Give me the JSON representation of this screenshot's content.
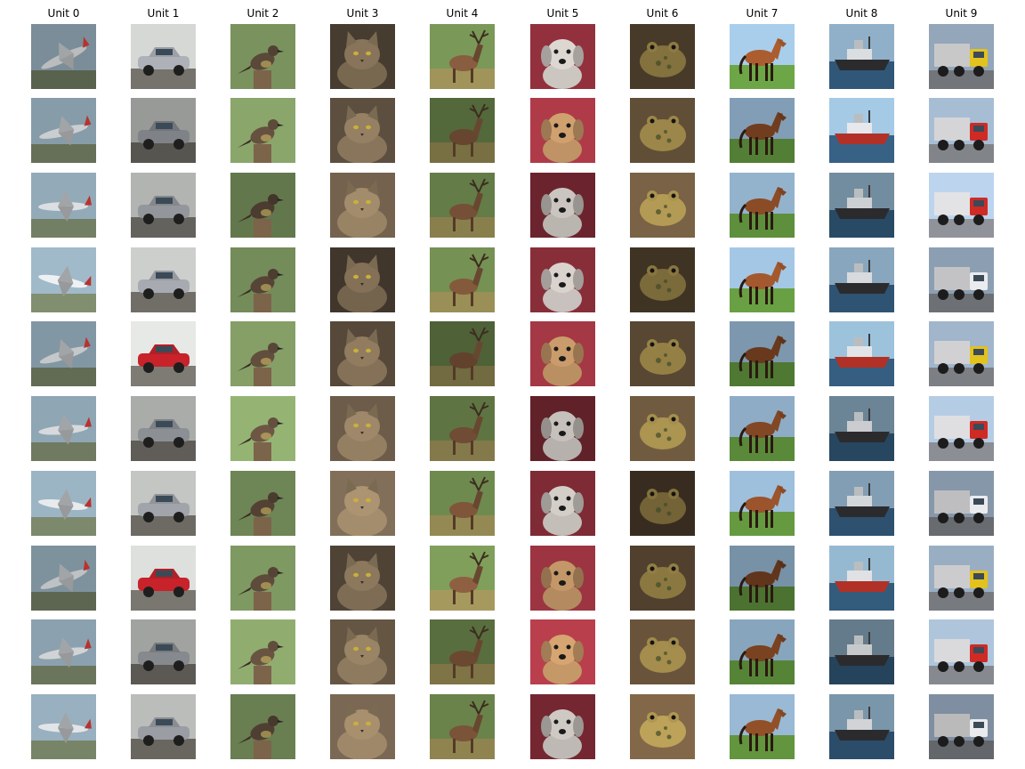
{
  "figure": {
    "columns": [
      {
        "title": "Unit 0",
        "subject": "airplane",
        "palette": {
          "bg": "#8fa6b4",
          "ground": "#6f7a60",
          "fg": "#e8ebee",
          "accent": "#b8322e"
        }
      },
      {
        "title": "Unit 1",
        "subject": "car",
        "palette": {
          "bg": "#d9dcd8",
          "ground": "#6d6a64",
          "fg": "#a9adb3",
          "accent": "#c8222a"
        }
      },
      {
        "title": "Unit 2",
        "subject": "bird",
        "palette": {
          "bg": "#7c9560",
          "ground": "#8a6f52",
          "fg": "#5e4b3b",
          "accent": "#d9c56a"
        }
      },
      {
        "title": "Unit 3",
        "subject": "cat",
        "palette": {
          "bg": "#6a5a48",
          "ground": "#d9cfbf",
          "fg": "#9a8466",
          "accent": "#3b3128"
        }
      },
      {
        "title": "Unit 4",
        "subject": "deer",
        "palette": {
          "bg": "#6f8a4f",
          "ground": "#8f8450",
          "fg": "#7a5338",
          "accent": "#3d2d20"
        }
      },
      {
        "title": "Unit 5",
        "subject": "dog",
        "palette": {
          "bg": "#8b2f3a",
          "ground": "#b7a996",
          "fg": "#e9e2dc",
          "accent": "#c89a6a"
        }
      },
      {
        "title": "Unit 6",
        "subject": "frog",
        "palette": {
          "bg": "#5c4a34",
          "ground": "#8b8f7a",
          "fg": "#a48d4d",
          "accent": "#3f4a2a"
        }
      },
      {
        "title": "Unit 7",
        "subject": "horse",
        "palette": {
          "bg": "#9fc1de",
          "ground": "#5e8f3c",
          "fg": "#8a4b26",
          "accent": "#2a1a10"
        }
      },
      {
        "title": "Unit 8",
        "subject": "ship",
        "palette": {
          "bg": "#8fb0c8",
          "ground": "#2f5473",
          "fg": "#e9ecef",
          "accent": "#b23126"
        }
      },
      {
        "title": "Unit 9",
        "subject": "truck",
        "palette": {
          "bg": "#a9bfd6",
          "ground": "#7c7f84",
          "fg": "#d02a25",
          "accent": "#e8e8ea"
        }
      }
    ],
    "rows": 10
  }
}
